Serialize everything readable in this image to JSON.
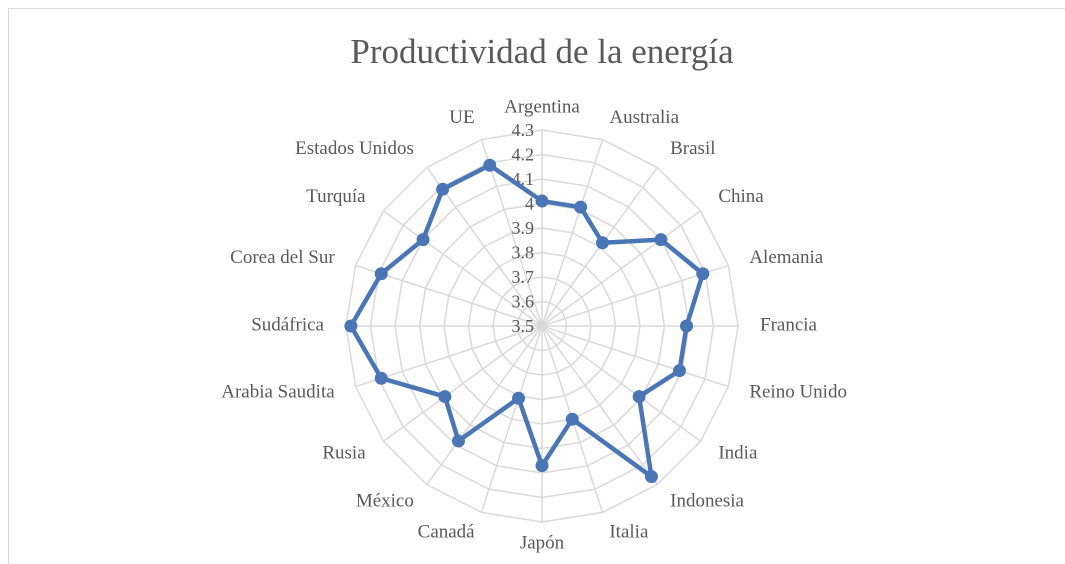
{
  "chart_data": {
    "type": "radar",
    "title": "Productividad de la energía",
    "categories": [
      "Argentina",
      "Australia",
      "Brasil",
      "China",
      "Alemania",
      "Francia",
      "Reino Unido",
      "India",
      "Indonesia",
      "Italia",
      "Japón",
      "Canadá",
      "México",
      "Rusia",
      "Arabia Saudita",
      "Sudáfrica",
      "Corea del Sur",
      "Turquía",
      "Estados Unidos",
      "UE"
    ],
    "series": [
      {
        "name": "Productividad",
        "color": "#4a76b5",
        "values": [
          4.01,
          4.01,
          3.92,
          4.1,
          4.19,
          4.09,
          4.09,
          3.99,
          4.26,
          3.9,
          4.07,
          3.81,
          4.08,
          3.99,
          4.19,
          4.28,
          4.19,
          4.1,
          4.19,
          4.19
        ]
      }
    ],
    "ylim": [
      3.5,
      4.3
    ],
    "yticks": [
      3.5,
      3.6,
      3.7,
      3.8,
      3.9,
      4,
      4.1,
      4.2,
      4.3
    ],
    "grid": true
  }
}
